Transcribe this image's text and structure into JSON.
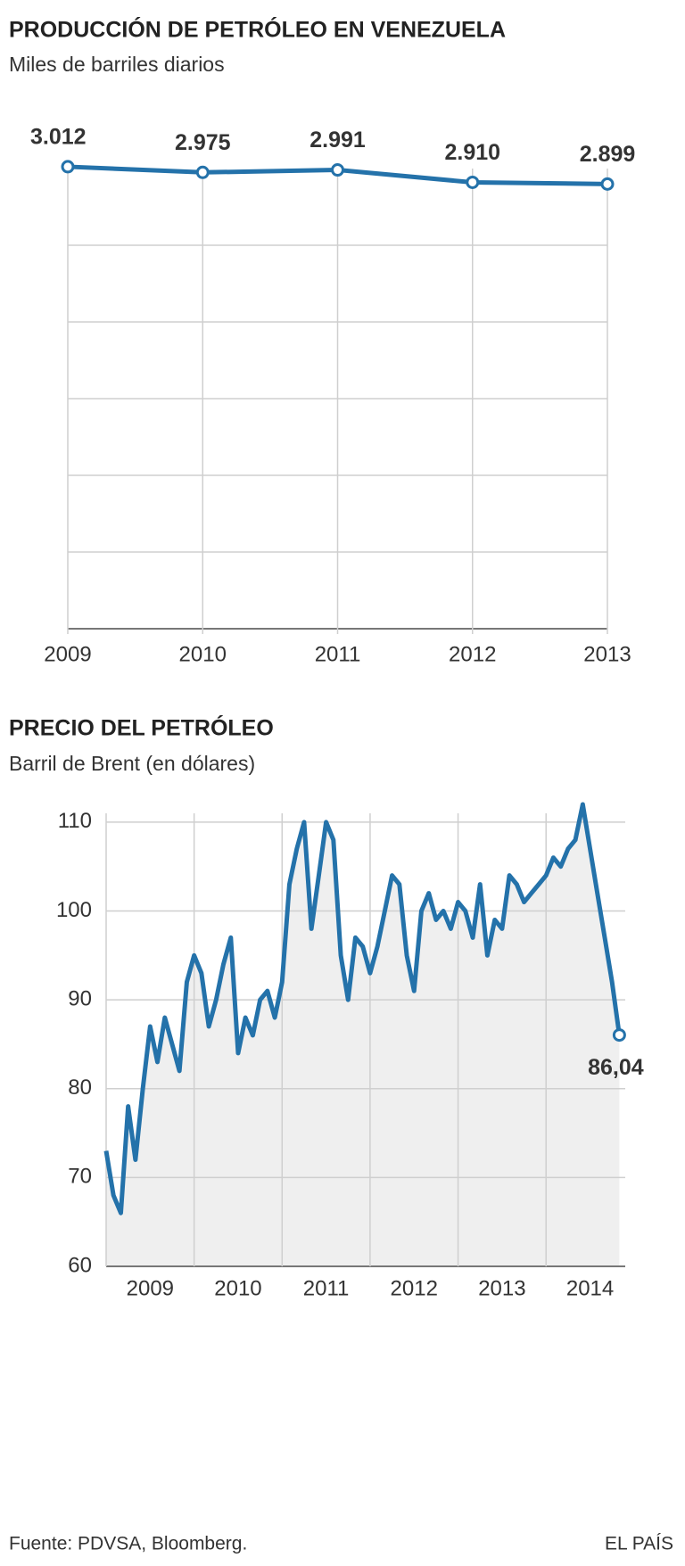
{
  "chart_data": [
    {
      "type": "line",
      "title": "PRODUCCIÓN DE PETRÓLEO EN VENEZUELA",
      "subtitle": "Miles de barriles diarios",
      "categories": [
        "2009",
        "2010",
        "2011",
        "2012",
        "2013"
      ],
      "values": [
        3012,
        2975,
        2991,
        2910,
        2899
      ],
      "value_labels": [
        "3.012",
        "2.975",
        "2.991",
        "2.910",
        "2.899"
      ],
      "color": "#2472aa",
      "ylim": [
        0,
        3000
      ],
      "yticks": [
        0,
        500,
        1000,
        1500,
        2000,
        2500
      ],
      "grid": true
    },
    {
      "type": "area",
      "title": "PRECIO DEL PETRÓLEO",
      "subtitle": "Barril de Brent (en dólares)",
      "x": [
        2009,
        2009.083,
        2009.167,
        2009.25,
        2009.333,
        2009.417,
        2009.5,
        2009.583,
        2009.667,
        2009.75,
        2009.833,
        2009.917,
        2010,
        2010.083,
        2010.167,
        2010.25,
        2010.333,
        2010.417,
        2010.5,
        2010.583,
        2010.667,
        2010.75,
        2010.833,
        2010.917,
        2011,
        2011.083,
        2011.167,
        2011.25,
        2011.333,
        2011.417,
        2011.5,
        2011.583,
        2011.667,
        2011.75,
        2011.833,
        2011.917,
        2012,
        2012.083,
        2012.167,
        2012.25,
        2012.333,
        2012.417,
        2012.5,
        2012.583,
        2012.667,
        2012.75,
        2012.833,
        2012.917,
        2013,
        2013.083,
        2013.167,
        2013.25,
        2013.333,
        2013.417,
        2013.5,
        2013.583,
        2013.667,
        2013.75,
        2013.833,
        2013.917,
        2014,
        2014.083,
        2014.167,
        2014.25,
        2014.333,
        2014.417,
        2014.5,
        2014.583,
        2014.667,
        2014.75,
        2014.833
      ],
      "values": [
        73,
        68,
        66,
        78,
        72,
        80,
        87,
        83,
        88,
        85,
        82,
        92,
        95,
        93,
        87,
        90,
        94,
        97,
        84,
        88,
        86,
        90,
        91,
        88,
        92,
        103,
        107,
        110,
        98,
        104,
        110,
        108,
        95,
        90,
        97,
        96,
        93,
        96,
        100,
        104,
        103,
        95,
        91,
        100,
        102,
        99,
        100,
        98,
        101,
        100,
        97,
        103,
        95,
        99,
        98,
        104,
        103,
        101,
        102,
        103,
        104,
        106,
        105,
        107,
        108,
        112,
        107,
        102,
        97,
        92,
        86.04
      ],
      "value_labels": [
        null,
        null,
        null,
        null,
        null,
        null,
        null,
        null,
        null,
        null,
        null,
        null,
        null,
        null,
        null,
        null,
        null,
        null,
        null,
        null,
        null,
        null,
        null,
        null,
        null,
        null,
        null,
        null,
        null,
        null,
        null,
        null,
        null,
        null,
        null,
        null,
        null,
        null,
        null,
        null,
        null,
        null,
        null,
        null,
        null,
        null,
        null,
        null,
        null,
        null,
        null,
        null,
        null,
        null,
        null,
        null,
        null,
        null,
        null,
        null,
        null,
        null,
        null,
        null,
        null,
        null,
        null,
        null,
        null,
        null,
        "86,04"
      ],
      "color": "#2472aa",
      "fill": "#efefef",
      "xlim": [
        2009,
        2014.9
      ],
      "xticks": [
        {
          "value": 2009.5,
          "label": "2009"
        },
        {
          "value": 2010.5,
          "label": "2010"
        },
        {
          "value": 2011.5,
          "label": "2011"
        },
        {
          "value": 2012.5,
          "label": "2012"
        },
        {
          "value": 2013.5,
          "label": "2013"
        },
        {
          "value": 2014.5,
          "label": "2014"
        }
      ],
      "ylim": [
        60,
        113
      ],
      "yticks": [
        60,
        70,
        80,
        90,
        100,
        110
      ],
      "grid": true
    }
  ],
  "footer": {
    "source": "Fuente: PDVSA, Bloomberg.",
    "publisher": "EL PAÍS"
  }
}
